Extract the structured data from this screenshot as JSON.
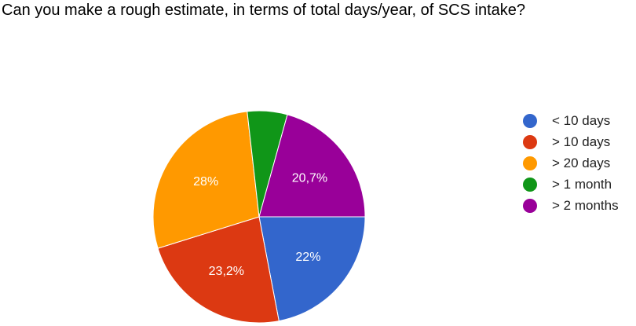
{
  "question": {
    "title": "Can you make a rough estimate, in terms of total days/year, of SCS intake?"
  },
  "chart_data": {
    "type": "pie",
    "title": "Can you make a rough estimate, in terms of total days/year, of SCS intake?",
    "start": "3 o'clock, clockwise",
    "legend_position": "right",
    "slices": [
      {
        "name": "< 10 days",
        "value": 22.0,
        "label": "22%",
        "color": "#3366cc"
      },
      {
        "name": "> 10 days",
        "value": 23.2,
        "label": "23,2%",
        "color": "#dc3912"
      },
      {
        "name": "> 20 days",
        "value": 28.0,
        "label": "28%",
        "color": "#ff9900"
      },
      {
        "name": "> 1 month",
        "value": 6.1,
        "label": "",
        "color": "#109618"
      },
      {
        "name": "> 2 months",
        "value": 20.7,
        "label": "20,7%",
        "color": "#990099"
      }
    ]
  }
}
